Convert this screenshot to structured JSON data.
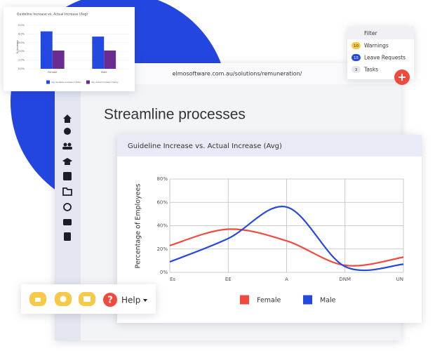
{
  "browser": {
    "url": "elmosoftware.com.au/solutions/remuneration/"
  },
  "page": {
    "heading": "Streamline processes"
  },
  "filter_menu": {
    "title": "Filter",
    "items": [
      {
        "badge": 10,
        "label": "Warnings",
        "color": "#f7c948"
      },
      {
        "badge": 15,
        "label": "Leave Requests",
        "color": "#2449e0"
      },
      {
        "badge": 3,
        "label": "Tasks",
        "color": "#e6e7ee"
      }
    ]
  },
  "help": {
    "icon": "?",
    "label": "Help"
  },
  "chart_data": [
    {
      "type": "bar",
      "title": "Guideline Increase vs. Actual Increase (Avg)",
      "ylabel": "% Increase",
      "categories": [
        "Female",
        "Male"
      ],
      "series": [
        {
          "name": "Avg. Guideline Increase in Salary",
          "color": "#2449e0",
          "values": [
            4.3,
            3.7
          ]
        },
        {
          "name": "Avg. Actual Increase in Salary",
          "color": "#6a2c91",
          "values": [
            2.1,
            2.1
          ]
        }
      ],
      "ylim": [
        0,
        5
      ],
      "yticks": [
        {
          "value": 0,
          "label": "0.0%"
        },
        {
          "value": 1,
          "label": "1.0%"
        },
        {
          "value": 2,
          "label": "2.0%"
        },
        {
          "value": 3,
          "label": "3.0%"
        },
        {
          "value": 4,
          "label": "4.0%"
        },
        {
          "value": 5,
          "label": "5.0%"
        }
      ],
      "grid": true
    },
    {
      "type": "line",
      "title": "Guideline Increase vs. Actual Increase (Avg)",
      "ylabel": "Percentage of Employees",
      "categories": [
        "Es",
        "EE",
        "A",
        "DNM",
        "UN"
      ],
      "series": [
        {
          "name": "Female",
          "color": "#f04a3c",
          "values": [
            23,
            37,
            27,
            6,
            13
          ]
        },
        {
          "name": "Male",
          "color": "#2449e0",
          "values": [
            9,
            29,
            56,
            5,
            7
          ]
        }
      ],
      "ylim": [
        0,
        80
      ],
      "yticks": [
        {
          "value": 0,
          "label": "0%"
        },
        {
          "value": 20,
          "label": "20%"
        },
        {
          "value": 40,
          "label": "40%"
        },
        {
          "value": 60,
          "label": "60%"
        },
        {
          "value": 80,
          "label": "80%"
        }
      ],
      "grid": true
    }
  ]
}
